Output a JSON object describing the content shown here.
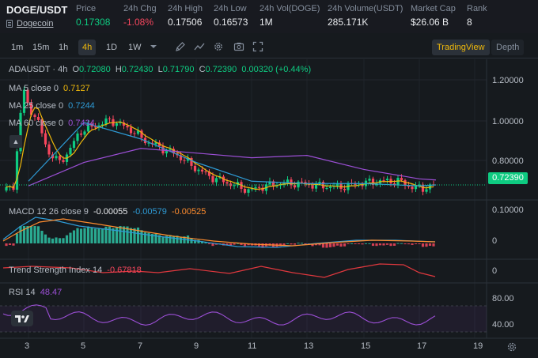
{
  "header": {
    "pair": "DOGE/USDT",
    "coin_link": "Dogecoin",
    "stats": [
      {
        "label": "Price",
        "value": "0.17308",
        "tone": "up"
      },
      {
        "label": "24h Chg",
        "value": "-1.08%",
        "tone": "down"
      },
      {
        "label": "24h High",
        "value": "0.17506",
        "tone": ""
      },
      {
        "label": "24h Low",
        "value": "0.16573",
        "tone": ""
      },
      {
        "label": "24h Vol(DOGE)",
        "value": "1M",
        "tone": ""
      },
      {
        "label": "24h Volume(USDT)",
        "value": "285.171K",
        "tone": ""
      },
      {
        "label": "Market Cap",
        "value": "$26.06 B",
        "tone": ""
      },
      {
        "label": "Rank",
        "value": "8",
        "tone": ""
      }
    ]
  },
  "toolbar": {
    "timeframes": [
      "1m",
      "15m",
      "1h",
      "4h",
      "1D",
      "1W"
    ],
    "active_timeframe": "4h",
    "icons": [
      "chevron-down-icon",
      "pencil-icon",
      "indicator-icon",
      "settings-icon",
      "camera-icon",
      "fullscreen-icon"
    ],
    "views": [
      "TradingView",
      "Depth"
    ],
    "active_view": "TradingView"
  },
  "chart": {
    "symbol": "ADAUSDT · 4h",
    "ohlc": {
      "o_label": "O",
      "o": "0.72080",
      "h_label": "H",
      "h": "0.72430",
      "l_label": "L",
      "l": "0.71790",
      "c_label": "C",
      "c": "0.72390",
      "change": "0.00320 (+0.44%)"
    },
    "ma": [
      {
        "label": "MA 5 close 0",
        "value": "0.7127",
        "color": "#f0b90b"
      },
      {
        "label": "MA 25 close 0",
        "value": "0.7244",
        "color": "#2e9bd6"
      },
      {
        "label": "MA 60 close 0",
        "value": "0.7434",
        "color": "#9c4fd6"
      }
    ],
    "price_axis": [
      "1.20000",
      "1.00000",
      "0.80000"
    ],
    "last_price": "0.72390",
    "macd": {
      "label": "MACD 12 26 close 9",
      "v1": "-0.00055",
      "v2": "-0.00579",
      "v3": "-0.00525",
      "axis": [
        "0.10000",
        "0"
      ]
    },
    "tsi": {
      "label": "Trend Strength Index 14",
      "value": "-0.67818",
      "axis": [
        "0"
      ]
    },
    "rsi": {
      "label": "RSI 14",
      "value": "48.47",
      "axis": [
        "80.00",
        "40.00"
      ]
    },
    "x_axis": [
      "3",
      "5",
      "7",
      "9",
      "11",
      "13",
      "15",
      "17",
      "19"
    ],
    "colors": {
      "up": "#0ecb81",
      "down": "#f6465d",
      "ma5": "#f0b90b",
      "ma25": "#2e9bd6",
      "ma60": "#9c4fd6",
      "tsi": "#e0383e",
      "rsi": "#9c4fd6"
    }
  },
  "chart_data": {
    "type": "line",
    "title": "ADAUSDT · 4h",
    "x": [
      "3",
      "5",
      "7",
      "9",
      "11",
      "13",
      "15",
      "17"
    ],
    "series": [
      {
        "name": "MA 25 close 0",
        "values": [
          0.74,
          0.99,
          0.92,
          0.82,
          0.74,
          0.73,
          0.73,
          0.72
        ]
      },
      {
        "name": "MA 60 close 0",
        "values": [
          0.72,
          0.82,
          0.88,
          0.86,
          0.84,
          0.85,
          0.79,
          0.75
        ]
      }
    ],
    "ylim": [
      0.66,
      1.26
    ],
    "ylabel": "",
    "xlabel": "",
    "grid": true
  }
}
